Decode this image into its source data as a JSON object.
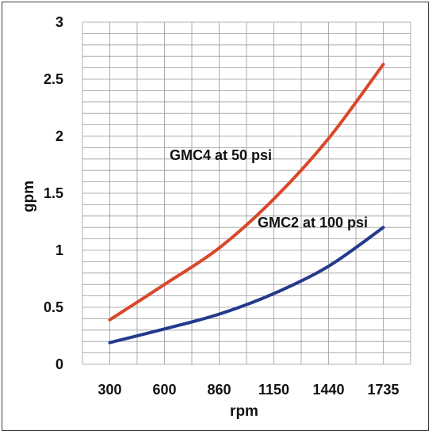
{
  "chart_data": {
    "type": "line",
    "categories": [
      "300",
      "600",
      "860",
      "1150",
      "1440",
      "1735"
    ],
    "xlabel": "rpm",
    "ylabel": "gpm",
    "ylim": [
      0,
      3
    ],
    "yticks": [
      "0",
      "0.5",
      "1",
      "1.5",
      "2",
      "2.5",
      "3"
    ],
    "grid": true,
    "series": [
      {
        "name": "GMC4 at 50 psi",
        "color": "#d9472b",
        "values": [
          0.39,
          0.7,
          1.02,
          1.45,
          1.98,
          2.63
        ]
      },
      {
        "name": "GMC2 at 100 psi",
        "color": "#243a8c",
        "values": [
          0.19,
          0.31,
          0.44,
          0.62,
          0.86,
          1.2
        ]
      }
    ]
  }
}
